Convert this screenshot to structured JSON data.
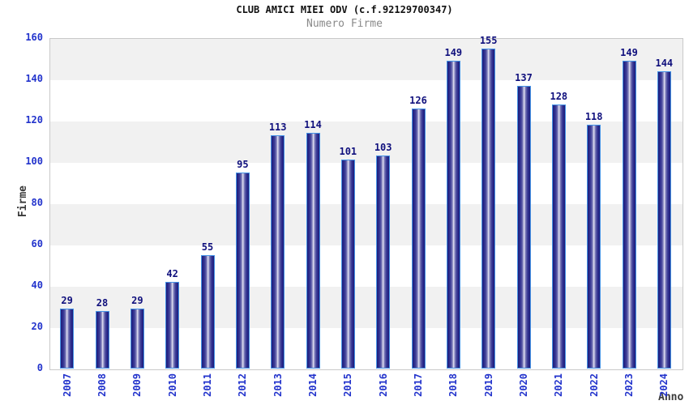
{
  "chart_data": {
    "type": "bar",
    "title": "CLUB AMICI MIEI ODV (c.f.92129700347)",
    "subtitle": "Numero Firme",
    "xlabel": "Anno",
    "ylabel": "Firme",
    "categories": [
      "2007",
      "2008",
      "2009",
      "2010",
      "2011",
      "2012",
      "2013",
      "2014",
      "2015",
      "2016",
      "2017",
      "2018",
      "2019",
      "2020",
      "2021",
      "2022",
      "2023",
      "2024"
    ],
    "values": [
      29,
      28,
      29,
      42,
      55,
      95,
      113,
      114,
      101,
      103,
      126,
      149,
      155,
      137,
      128,
      118,
      149,
      144
    ],
    "ylim": [
      0,
      160
    ],
    "yticks": [
      0,
      20,
      40,
      60,
      80,
      100,
      120,
      140,
      160
    ],
    "grid": "alternating-horizontal-bands",
    "legend_position": "none",
    "bar_value_labels": true
  },
  "colors": {
    "bar_edge": "#1e1e78",
    "bar_highlight": "#e8e8f6",
    "bar_border": "#4593e6",
    "value_label": "#10107d",
    "tick_label": "#2233cc",
    "band_gray": "#f1f1f1",
    "plot_border": "#c9c9c9",
    "title": "#111111",
    "subtitle": "#8a8a8a",
    "axis_title": "#3a3a3a",
    "background": "#ffffff"
  }
}
